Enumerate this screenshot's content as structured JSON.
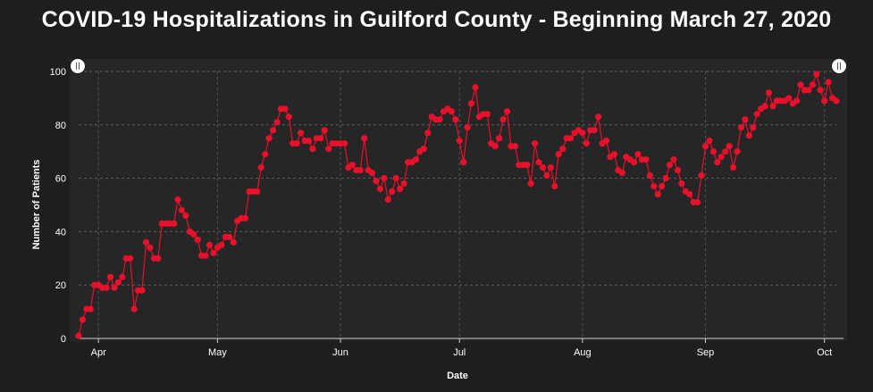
{
  "chart_data": {
    "type": "line",
    "title": "COVID-19 Hospitalizations in Guilford County - Beginning March 27, 2020",
    "xlabel": "Date",
    "ylabel": "Number of Patients",
    "ylim": [
      0,
      100
    ],
    "y_ticks": [
      "0",
      "20",
      "40",
      "60",
      "80",
      "100"
    ],
    "x_ticks": [
      {
        "label": "Apr",
        "day": 5
      },
      {
        "label": "May",
        "day": 35
      },
      {
        "label": "Jun",
        "day": 66
      },
      {
        "label": "Jul",
        "day": 96
      },
      {
        "label": "Aug",
        "day": 127
      },
      {
        "label": "Sep",
        "day": 158
      },
      {
        "label": "Oct",
        "day": 188
      }
    ],
    "x_start": "2020-03-27",
    "grid": true,
    "line_color": "#e8102a",
    "background": "#1e1e1e",
    "values": [
      1,
      7,
      11,
      11,
      20,
      20,
      19,
      19,
      23,
      19,
      21,
      23,
      30,
      30,
      11,
      18,
      18,
      36,
      34,
      30,
      30,
      43,
      43,
      43,
      43,
      52,
      48,
      46,
      40,
      39,
      37,
      31,
      31,
      35,
      32,
      34,
      35,
      38,
      38,
      36,
      44,
      45,
      45,
      55,
      55,
      55,
      64,
      69,
      75,
      78,
      81,
      86,
      86,
      83,
      73,
      73,
      77,
      74,
      74,
      71,
      75,
      75,
      78,
      71,
      73,
      73,
      73,
      73,
      64,
      65,
      63,
      63,
      75,
      63,
      62,
      59,
      56,
      60,
      52,
      55,
      60,
      56,
      58,
      66,
      66,
      67,
      70,
      71,
      77,
      83,
      82,
      82,
      85,
      86,
      85,
      82,
      74,
      66,
      79,
      88,
      94,
      83,
      84,
      84,
      73,
      72,
      75,
      82,
      85,
      72,
      72,
      65,
      65,
      65,
      58,
      73,
      66,
      64,
      61,
      64,
      57,
      69,
      71,
      75,
      75,
      77,
      78,
      77,
      73,
      78,
      78,
      83,
      73,
      74,
      68,
      69,
      63,
      62,
      68,
      67,
      66,
      69,
      67,
      67,
      61,
      57,
      54,
      57,
      60,
      65,
      67,
      63,
      58,
      55,
      54,
      51,
      51,
      61,
      72,
      74,
      70,
      66,
      68,
      70,
      72,
      64,
      70,
      79,
      82,
      76,
      79,
      84,
      86,
      87,
      92,
      87,
      89,
      89,
      89,
      90,
      88,
      89,
      95,
      93,
      93,
      95,
      99,
      93,
      89,
      96,
      90,
      89
    ]
  }
}
